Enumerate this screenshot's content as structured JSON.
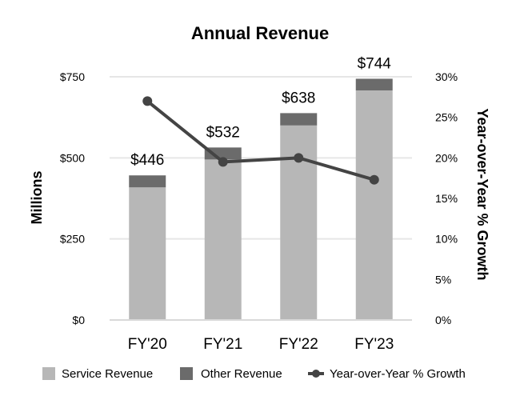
{
  "chart_data": {
    "type": "bar",
    "title": "Annual Revenue",
    "categories": [
      "FY'20",
      "FY'21",
      "FY'22",
      "FY'23"
    ],
    "series": [
      {
        "name": "Service Revenue",
        "kind": "bar",
        "values": [
          409,
          495,
          600,
          708
        ],
        "color": "#b7b7b7"
      },
      {
        "name": "Other Revenue",
        "kind": "bar",
        "values": [
          37,
          37,
          38,
          36
        ],
        "color": "#6b6b6b"
      },
      {
        "name": "Year-over-Year % Growth",
        "kind": "line",
        "axis": "right",
        "values": [
          27.0,
          19.5,
          20.0,
          17.3
        ],
        "color": "#444444"
      }
    ],
    "totals": [
      446,
      532,
      638,
      744
    ],
    "total_labels": [
      "$446",
      "$532",
      "$638",
      "$744"
    ],
    "ylabel": "Millions",
    "ylim": [
      0,
      750
    ],
    "yticks": [
      0,
      250,
      500,
      750
    ],
    "ytick_labels": [
      "$0",
      "$250",
      "$500",
      "$750"
    ],
    "y2label": "Year-over-Year % Growth",
    "y2lim": [
      0,
      30
    ],
    "y2ticks": [
      0,
      5,
      10,
      15,
      20,
      25,
      30
    ],
    "y2tick_labels": [
      "0%",
      "5%",
      "10%",
      "15%",
      "20%",
      "25%",
      "30%"
    ],
    "grid": true,
    "legend_position": "bottom"
  }
}
